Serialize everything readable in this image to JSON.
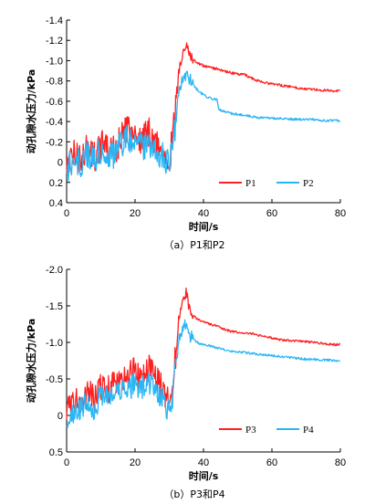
{
  "chart_data": [
    {
      "type": "line",
      "caption": "（a）P1和P2",
      "xlabel": "时间/s",
      "ylabel": "动孔隙水压力/kPa",
      "xlim": [
        0,
        80
      ],
      "ylim": [
        0.4,
        -1.4
      ],
      "y_inverted": true,
      "xticks": [
        0,
        20,
        40,
        60,
        80
      ],
      "yticks": [
        0.4,
        0.2,
        0,
        -0.2,
        -0.4,
        -0.6,
        -0.8,
        -1.0,
        -1.2,
        -1.4
      ],
      "ytick_labels": [
        "0.4",
        "0.2",
        "0",
        "-0.2",
        "-0.4",
        "-0.6",
        "-0.8",
        "-1.0",
        "-1.2",
        "-1.4"
      ],
      "legend_position": "bottom-right",
      "series": [
        {
          "name": "P1",
          "color": "#ff2020",
          "x": [
            0,
            2,
            4,
            6,
            8,
            10,
            12,
            14,
            16,
            18,
            20,
            22,
            24,
            26,
            28,
            30,
            31,
            32,
            33,
            34,
            35,
            36,
            38,
            40,
            42,
            44,
            46,
            48,
            50,
            52,
            54,
            56,
            58,
            60,
            62,
            64,
            66,
            68,
            70,
            72,
            74,
            76,
            78,
            80
          ],
          "y": [
            0.05,
            -0.08,
            -0.02,
            -0.15,
            -0.05,
            -0.18,
            -0.1,
            -0.12,
            -0.25,
            -0.3,
            -0.28,
            -0.22,
            -0.3,
            -0.2,
            -0.1,
            -0.05,
            -0.2,
            -0.6,
            -0.95,
            -1.1,
            -1.18,
            -1.05,
            -0.98,
            -0.95,
            -0.93,
            -0.92,
            -0.9,
            -0.88,
            -0.87,
            -0.86,
            -0.83,
            -0.8,
            -0.78,
            -0.77,
            -0.76,
            -0.75,
            -0.74,
            -0.73,
            -0.72,
            -0.72,
            -0.71,
            -0.71,
            -0.7,
            -0.7
          ]
        },
        {
          "name": "P2",
          "color": "#29b6f6",
          "x": [
            0,
            2,
            4,
            6,
            8,
            10,
            12,
            14,
            16,
            18,
            20,
            22,
            24,
            26,
            28,
            30,
            31,
            32,
            33,
            34,
            35,
            36,
            38,
            40,
            42,
            44,
            44.5,
            46,
            48,
            50,
            52,
            54,
            56,
            58,
            60,
            62,
            64,
            66,
            68,
            70,
            72,
            74,
            76,
            78,
            80
          ],
          "y": [
            0.08,
            -0.02,
            0.02,
            -0.1,
            0.0,
            -0.12,
            -0.05,
            -0.08,
            -0.2,
            -0.22,
            -0.18,
            -0.15,
            -0.2,
            -0.12,
            -0.05,
            0.0,
            -0.15,
            -0.45,
            -0.7,
            -0.82,
            -0.85,
            -0.8,
            -0.72,
            -0.66,
            -0.63,
            -0.61,
            -0.52,
            -0.5,
            -0.48,
            -0.47,
            -0.46,
            -0.45,
            -0.44,
            -0.44,
            -0.43,
            -0.43,
            -0.43,
            -0.42,
            -0.42,
            -0.42,
            -0.42,
            -0.41,
            -0.41,
            -0.41,
            -0.41
          ]
        }
      ]
    },
    {
      "type": "line",
      "caption": "（b）P3和P4",
      "xlabel": "时间/s",
      "ylabel": "动孔隙水压力/kPa",
      "xlim": [
        0,
        80
      ],
      "ylim": [
        0.5,
        -2.0
      ],
      "y_inverted": true,
      "xticks": [
        0,
        20,
        40,
        60,
        80
      ],
      "yticks": [
        0.5,
        0,
        -0.5,
        -1.0,
        -1.5,
        -2.0
      ],
      "ytick_labels": [
        "0.5",
        "0",
        "-0.5",
        "-1.0",
        "-1.5",
        "-2.0"
      ],
      "legend_position": "bottom-right",
      "series": [
        {
          "name": "P3",
          "color": "#ff2020",
          "x": [
            0,
            2,
            4,
            6,
            8,
            10,
            12,
            14,
            16,
            18,
            20,
            22,
            24,
            26,
            28,
            30,
            31,
            32,
            33,
            34,
            35,
            36,
            38,
            40,
            42,
            44,
            46,
            48,
            50,
            52,
            54,
            56,
            58,
            60,
            62,
            64,
            66,
            68,
            70,
            72,
            74,
            76,
            78,
            80
          ],
          "y": [
            -0.05,
            -0.15,
            -0.2,
            -0.3,
            -0.25,
            -0.4,
            -0.35,
            -0.45,
            -0.5,
            -0.55,
            -0.6,
            -0.55,
            -0.65,
            -0.5,
            -0.35,
            -0.2,
            -0.4,
            -0.9,
            -1.4,
            -1.6,
            -1.7,
            -1.45,
            -1.32,
            -1.28,
            -1.25,
            -1.22,
            -1.18,
            -1.15,
            -1.14,
            -1.13,
            -1.12,
            -1.1,
            -1.08,
            -1.06,
            -1.04,
            -1.03,
            -1.02,
            -1.02,
            -1.01,
            -1.0,
            -0.99,
            -0.98,
            -0.97,
            -0.97
          ]
        },
        {
          "name": "P4",
          "color": "#29b6f6",
          "x": [
            0,
            2,
            4,
            6,
            8,
            10,
            12,
            14,
            16,
            18,
            20,
            22,
            24,
            26,
            28,
            30,
            31,
            32,
            33,
            34,
            35,
            36,
            38,
            40,
            42,
            44,
            46,
            48,
            50,
            52,
            54,
            56,
            58,
            60,
            62,
            64,
            66,
            68,
            70,
            72,
            74,
            76,
            78,
            80
          ],
          "y": [
            0.05,
            -0.05,
            -0.1,
            -0.2,
            -0.12,
            -0.25,
            -0.2,
            -0.3,
            -0.35,
            -0.4,
            -0.42,
            -0.38,
            -0.45,
            -0.35,
            -0.2,
            -0.05,
            -0.25,
            -0.7,
            -1.05,
            -1.2,
            -1.28,
            -1.1,
            -1.0,
            -0.97,
            -0.95,
            -0.92,
            -0.9,
            -0.88,
            -0.87,
            -0.86,
            -0.85,
            -0.84,
            -0.83,
            -0.82,
            -0.81,
            -0.8,
            -0.79,
            -0.78,
            -0.77,
            -0.77,
            -0.76,
            -0.76,
            -0.75,
            -0.75
          ]
        }
      ]
    }
  ]
}
